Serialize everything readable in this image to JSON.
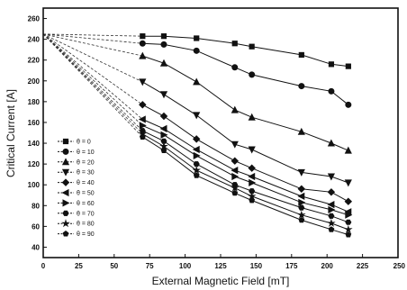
{
  "chart_data": {
    "type": "line",
    "xlabel": "External Magnetic Field [mT]",
    "ylabel": "Critical Current [A]",
    "xlim": [
      0,
      250
    ],
    "ylim": [
      30,
      270
    ],
    "xticks": [
      0,
      25,
      50,
      75,
      100,
      125,
      150,
      175,
      200,
      225,
      250
    ],
    "yticks": [
      40,
      60,
      80,
      100,
      120,
      140,
      160,
      180,
      200,
      220,
      240,
      260
    ],
    "grid": false,
    "legend_position": "lower-left",
    "x": [
      0,
      70,
      85,
      108,
      135,
      147,
      182,
      203,
      215
    ],
    "series": [
      {
        "name": "θ = 0",
        "marker": "square",
        "values": [
          245,
          243,
          243,
          241,
          236,
          233,
          225,
          216,
          214
        ]
      },
      {
        "name": "θ = 10",
        "marker": "circle",
        "values": [
          245,
          236,
          235,
          229,
          213,
          206,
          195,
          190,
          177
        ]
      },
      {
        "name": "θ = 20",
        "marker": "triangle-up",
        "values": [
          245,
          224,
          217,
          199,
          172,
          165,
          151,
          140,
          133
        ]
      },
      {
        "name": "θ = 30",
        "marker": "triangle-down",
        "values": [
          245,
          199,
          187,
          167,
          139,
          134,
          112,
          108,
          102
        ]
      },
      {
        "name": "θ = 40",
        "marker": "diamond",
        "values": [
          245,
          177,
          166,
          144,
          123,
          116,
          96,
          93,
          84
        ]
      },
      {
        "name": "θ = 50",
        "marker": "triangle-left",
        "values": [
          245,
          163,
          154,
          134,
          114,
          108,
          89,
          81,
          74
        ]
      },
      {
        "name": "θ = 60",
        "marker": "triangle-right",
        "values": [
          245,
          157,
          148,
          128,
          108,
          102,
          83,
          76,
          71
        ]
      },
      {
        "name": "θ = 70",
        "marker": "hexagon",
        "values": [
          245,
          152,
          142,
          120,
          100,
          94,
          78,
          70,
          64
        ]
      },
      {
        "name": "θ = 80",
        "marker": "star",
        "values": [
          245,
          149,
          137,
          114,
          97,
          89,
          71,
          63,
          57
        ]
      },
      {
        "name": "θ = 90",
        "marker": "pentagon",
        "values": [
          245,
          146,
          133,
          109,
          92,
          85,
          66,
          57,
          52
        ]
      }
    ]
  }
}
